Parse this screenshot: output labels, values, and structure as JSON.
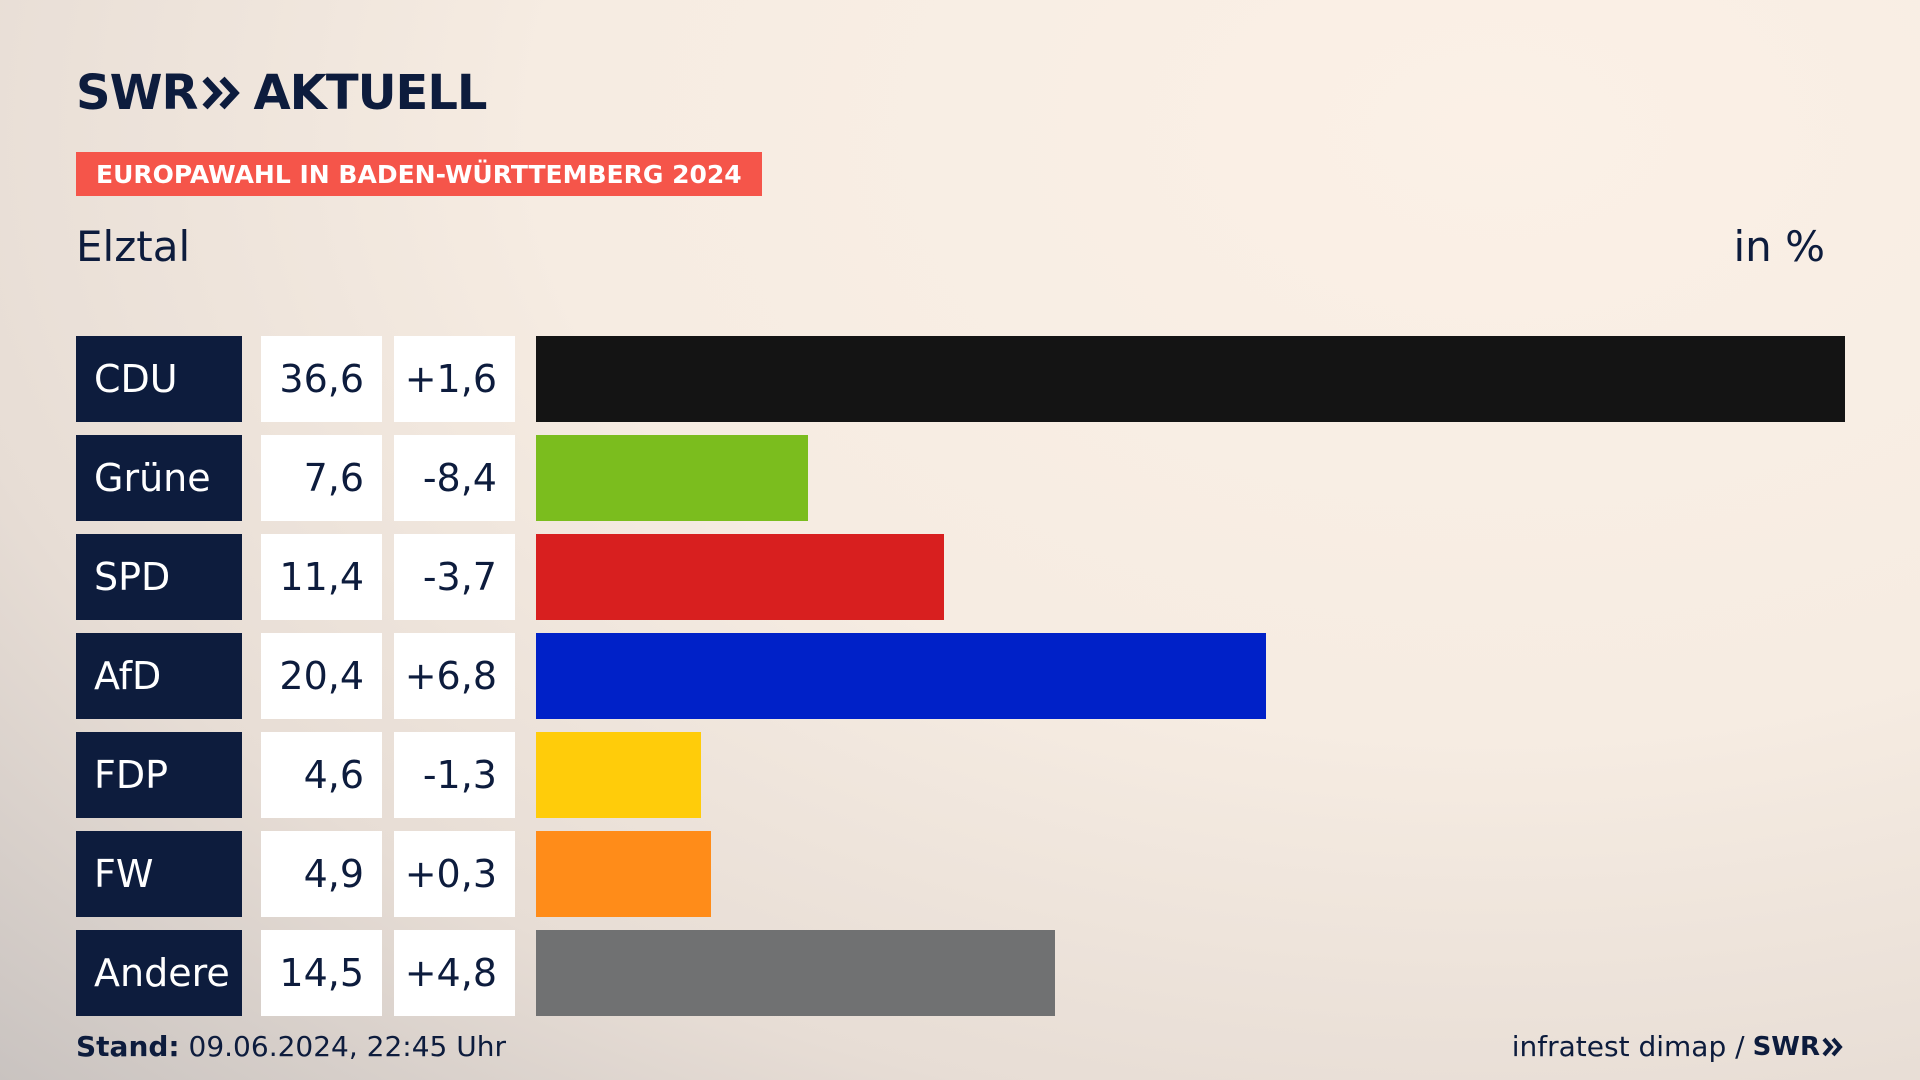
{
  "header": {
    "brand_left": "SWR",
    "brand_right": "AKTUELL",
    "tag": "EUROPAWAHL IN BADEN-WÜRTTEMBERG 2024",
    "place": "Elztal",
    "unit": "in %"
  },
  "footer": {
    "stand_label": "Stand:",
    "stand_value": "09.06.2024, 22:45 Uhr",
    "source": "infratest dimap /",
    "source_brand": "SWR"
  },
  "chart_data": {
    "type": "bar",
    "orientation": "horizontal",
    "categories": [
      "CDU",
      "Grüne",
      "SPD",
      "AfD",
      "FDP",
      "FW",
      "Andere"
    ],
    "values": [
      36.6,
      7.6,
      11.4,
      20.4,
      4.6,
      4.9,
      14.5
    ],
    "value_labels": [
      "36,6",
      "7,6",
      "11,4",
      "20,4",
      "4,6",
      "4,9",
      "14,5"
    ],
    "changes": [
      1.6,
      -8.4,
      -3.7,
      6.8,
      -1.3,
      0.3,
      4.8
    ],
    "change_labels": [
      "+1,6",
      "-8,4",
      "-3,7",
      "+6,8",
      "-1,3",
      "+0,3",
      "+4,8"
    ],
    "colors": [
      "#141414",
      "#7bbd1e",
      "#d81f1f",
      "#0021c8",
      "#ffcc0a",
      "#ff8c19",
      "#707172"
    ],
    "xlim": [
      0,
      36.6
    ],
    "grid": false,
    "legend": "none"
  }
}
